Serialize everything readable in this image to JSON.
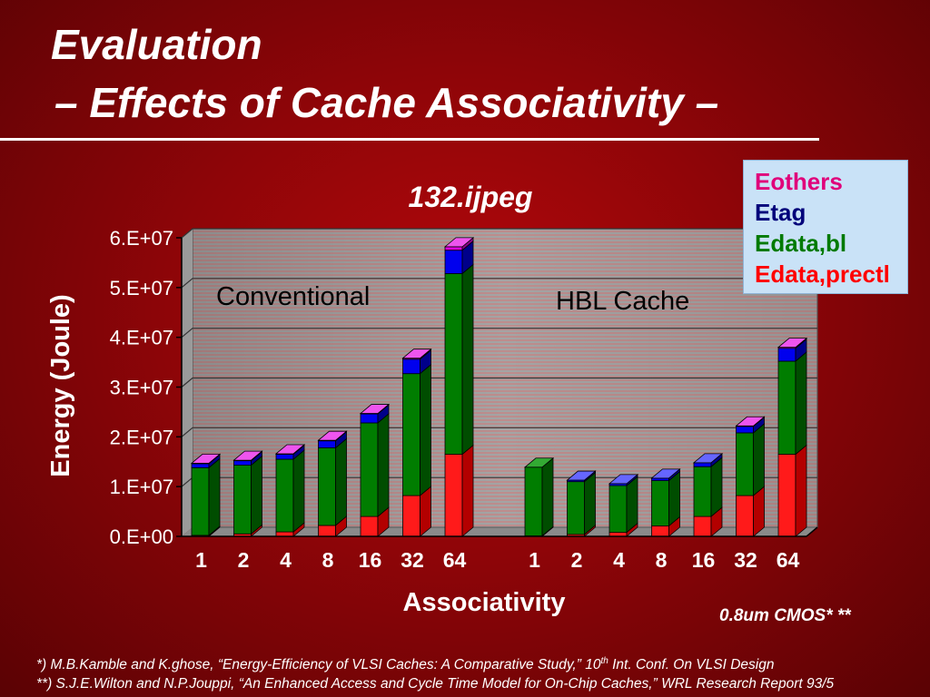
{
  "slide": {
    "title_line1": "Evaluation",
    "title_line2": "– Effects of Cache Associativity –",
    "cmos_note": "0.8um CMOS* **",
    "references": [
      {
        "mark": "*)",
        "text": " M.B.Kamble and K.ghose, “Energy-Efficiency of VLSI Caches: A Comparative Study,” 10",
        "sup": "th",
        "tail": " Int. Conf. On VLSI Design"
      },
      {
        "mark": "**)",
        "text": " S.J.E.Wilton and N.P.Jouppi, “An Enhanced Access and Cycle Time Model for On-Chip Caches,” WRL Research Report 93/5",
        "sup": "",
        "tail": ""
      }
    ]
  },
  "legend": [
    {
      "label": "Eothers",
      "color": "#e0007a"
    },
    {
      "label": "Etag",
      "color": "#00007a"
    },
    {
      "label": "Edata,bl",
      "color": "#007a00"
    },
    {
      "label": "Edata,prectl",
      "color": "#ff0000"
    }
  ],
  "chart_data": {
    "type": "bar",
    "stacked": true,
    "title": "132.ijpeg",
    "xlabel": "Associativity",
    "ylabel": "Energy (Joule)",
    "ylim": [
      0,
      60000000
    ],
    "yticks": [
      "0.E+00",
      "1.E+07",
      "2.E+07",
      "3.E+07",
      "4.E+07",
      "5.E+07",
      "6.E+07"
    ],
    "groups": [
      {
        "name": "Conventional",
        "categories": [
          "1",
          "2",
          "4",
          "8",
          "16",
          "32",
          "64"
        ],
        "series": [
          {
            "name": "Edata,prectl",
            "color": "#ff0000",
            "face": "#ff1a1a",
            "side": "#b30000",
            "top": "#ff8080",
            "values": [
              200000,
              500000,
              900000,
              2200000,
              4000000,
              8200000,
              16500000
            ]
          },
          {
            "name": "Edata,bl",
            "color": "#007a00",
            "face": "#007d00",
            "side": "#004d00",
            "top": "#33aa33",
            "values": [
              13600000,
              13800000,
              14600000,
              15600000,
              18800000,
              24500000,
              36300000
            ]
          },
          {
            "name": "Etag",
            "color": "#0000ff",
            "face": "#0000ee",
            "side": "#00008a",
            "top": "#6666ff",
            "values": [
              800000,
              900000,
              1000000,
              1400000,
              1800000,
              2900000,
              4700000
            ]
          },
          {
            "name": "Eothers",
            "color": "#e000e0",
            "face": "#dd00dd",
            "side": "#8a008a",
            "top": "#ee55ee",
            "values": [
              100000,
              100000,
              100000,
              100000,
              100000,
              200000,
              700000
            ]
          }
        ]
      },
      {
        "name": "HBL Cache",
        "categories": [
          "1",
          "2",
          "4",
          "8",
          "16",
          "32",
          "64"
        ],
        "series": [
          {
            "name": "Edata,prectl",
            "color": "#ff0000",
            "face": "#ff1a1a",
            "side": "#b30000",
            "top": "#ff8080",
            "values": [
              100000,
              400000,
              800000,
              2100000,
              4000000,
              8200000,
              16500000
            ]
          },
          {
            "name": "Edata,bl",
            "color": "#007a00",
            "face": "#007d00",
            "side": "#004d00",
            "top": "#33aa33",
            "values": [
              13800000,
              10600000,
              9400000,
              9100000,
              10000000,
              12600000,
              18700000
            ]
          },
          {
            "name": "Etag",
            "color": "#0000ff",
            "face": "#0000ee",
            "side": "#00008a",
            "top": "#6666ff",
            "values": [
              0,
              300000,
              400000,
              500000,
              800000,
              1300000,
              2600000
            ]
          },
          {
            "name": "Eothers",
            "color": "#e000e0",
            "face": "#dd00dd",
            "side": "#8a008a",
            "top": "#ee55ee",
            "values": [
              0,
              0,
              0,
              0,
              0,
              100000,
              200000
            ]
          }
        ]
      }
    ]
  }
}
